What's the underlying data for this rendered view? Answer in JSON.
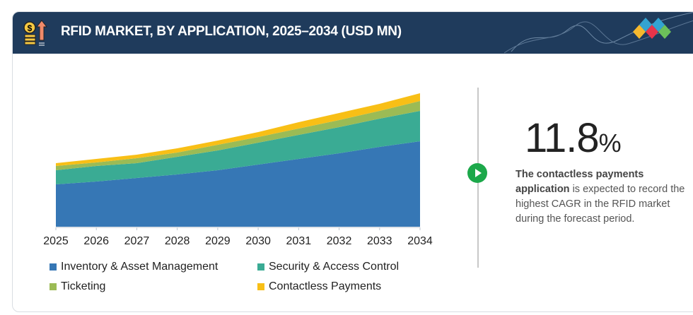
{
  "header": {
    "title": "RFID MARKET, BY APPLICATION, 2025–2034 (USD MN)"
  },
  "chart_data": {
    "type": "area",
    "stacked": true,
    "title": "RFID MARKET, BY APPLICATION, 2025–2034 (USD MN)",
    "categories": [
      "2025",
      "2026",
      "2027",
      "2028",
      "2029",
      "2030",
      "2031",
      "2032",
      "2033",
      "2034"
    ],
    "series": [
      {
        "name": "Inventory & Asset Management",
        "color": "#3677b5",
        "values": [
          60,
          64,
          69,
          74,
          80,
          88,
          96,
          104,
          113,
          121
        ]
      },
      {
        "name": "Security & Access Control",
        "color": "#3aab94",
        "values": [
          20,
          22,
          21,
          25,
          28,
          31,
          34,
          37,
          40,
          43
        ]
      },
      {
        "name": "Ticketing",
        "color": "#9bbb55",
        "values": [
          6,
          5,
          7,
          6,
          8,
          8,
          9,
          10,
          11,
          14
        ]
      },
      {
        "name": "Contactless Payments",
        "color": "#f8bf16",
        "values": [
          4,
          5,
          5,
          6,
          6,
          7,
          9,
          10,
          10,
          11
        ]
      }
    ],
    "ylim": [
      0,
      200
    ],
    "grid": false,
    "legend": "bottom"
  },
  "highlight": {
    "value": "11.8",
    "unit": "%",
    "text_bold": "The contactless payments application",
    "text_rest": " is expected to record the highest CAGR in the RFID market during the forecast period."
  }
}
